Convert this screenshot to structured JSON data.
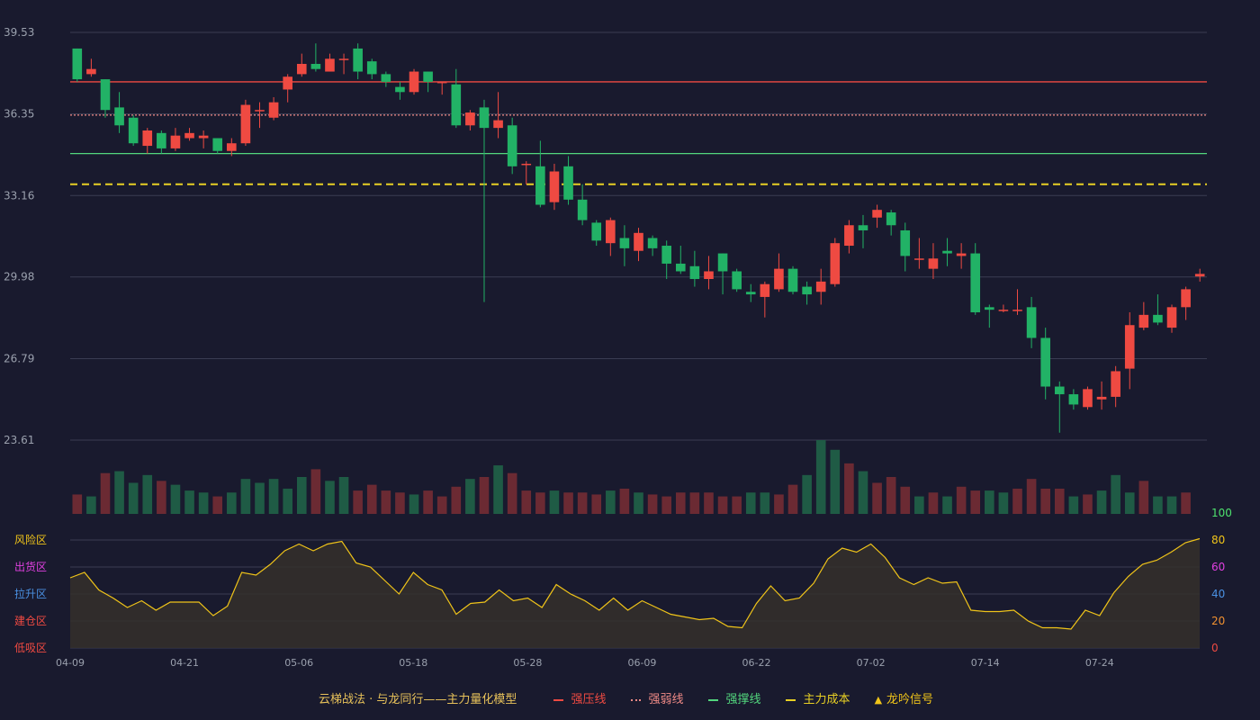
{
  "theme": {
    "background": "#191a2e",
    "grid": "#3a3c52",
    "up_color": "#ef4a42",
    "down_color": "#22b266",
    "vol_up_color": "#6b2a33",
    "vol_down_color": "#1f5b45",
    "osc_line": "#f0c419",
    "osc_fill": "#35302a"
  },
  "chart_data": [
    {
      "type": "candlestick",
      "y_ticks": [
        "39.53",
        "36.35",
        "33.16",
        "29.98",
        "26.79",
        "23.61"
      ],
      "ylim": [
        23.61,
        39.53
      ],
      "x_tick_labels": [
        {
          "index": 0,
          "label": "04-09"
        },
        {
          "index": 8,
          "label": "04-21"
        },
        {
          "index": 16,
          "label": "05-06"
        },
        {
          "index": 24,
          "label": "05-18"
        },
        {
          "index": 32,
          "label": "05-28"
        },
        {
          "index": 40,
          "label": "06-09"
        },
        {
          "index": 48,
          "label": "06-22"
        },
        {
          "index": 56,
          "label": "07-02"
        },
        {
          "index": 64,
          "label": "07-14"
        },
        {
          "index": 72,
          "label": "07-24"
        }
      ],
      "candles": [
        [
          38.9,
          37.7,
          38.9,
          37.6
        ],
        [
          37.9,
          38.1,
          38.5,
          37.8
        ],
        [
          37.7,
          36.5,
          37.7,
          36.2
        ],
        [
          36.6,
          35.9,
          37.2,
          35.6
        ],
        [
          36.2,
          35.2,
          36.3,
          35.1
        ],
        [
          35.1,
          35.7,
          35.8,
          34.8
        ],
        [
          35.6,
          35.0,
          35.7,
          34.8
        ],
        [
          35.0,
          35.5,
          35.8,
          34.9
        ],
        [
          35.4,
          35.6,
          35.8,
          35.3
        ],
        [
          35.4,
          35.5,
          35.7,
          35.0
        ],
        [
          35.4,
          34.9,
          35.4,
          34.8
        ],
        [
          34.9,
          35.2,
          35.4,
          34.7
        ],
        [
          35.2,
          36.7,
          36.9,
          35.1
        ],
        [
          36.5,
          36.5,
          36.8,
          35.8
        ],
        [
          36.2,
          36.8,
          37.0,
          36.1
        ],
        [
          37.3,
          37.8,
          37.9,
          36.8
        ],
        [
          37.9,
          38.3,
          38.7,
          37.8
        ],
        [
          38.3,
          38.1,
          39.1,
          38.0
        ],
        [
          38.0,
          38.5,
          38.7,
          38.0
        ],
        [
          38.5,
          38.5,
          38.7,
          37.9
        ],
        [
          38.9,
          38.0,
          39.1,
          37.7
        ],
        [
          38.4,
          37.9,
          38.5,
          37.7
        ],
        [
          37.9,
          37.6,
          38.0,
          37.4
        ],
        [
          37.4,
          37.2,
          37.6,
          36.9
        ],
        [
          37.2,
          38.0,
          38.1,
          37.1
        ],
        [
          38.0,
          37.6,
          38.0,
          37.2
        ],
        [
          37.6,
          37.6,
          37.6,
          37.1
        ],
        [
          37.5,
          35.9,
          38.1,
          35.8
        ],
        [
          35.9,
          36.4,
          36.5,
          35.7
        ],
        [
          36.6,
          35.8,
          36.9,
          29.0
        ],
        [
          35.8,
          36.1,
          37.2,
          35.4
        ],
        [
          35.9,
          34.3,
          36.2,
          34.0
        ],
        [
          34.4,
          34.4,
          34.5,
          33.6
        ],
        [
          34.3,
          32.8,
          35.3,
          32.7
        ],
        [
          32.9,
          34.1,
          34.4,
          32.6
        ],
        [
          34.3,
          33.0,
          34.7,
          32.8
        ],
        [
          33.0,
          32.2,
          33.6,
          32.0
        ],
        [
          32.1,
          31.4,
          32.2,
          31.2
        ],
        [
          31.3,
          32.2,
          32.3,
          30.8
        ],
        [
          31.5,
          31.1,
          32.0,
          30.4
        ],
        [
          31.0,
          31.7,
          31.9,
          30.6
        ],
        [
          31.5,
          31.1,
          31.6,
          30.8
        ],
        [
          31.2,
          30.5,
          31.4,
          29.9
        ],
        [
          30.5,
          30.2,
          31.2,
          30.1
        ],
        [
          30.4,
          29.9,
          31.0,
          29.6
        ],
        [
          29.9,
          30.2,
          30.8,
          29.5
        ],
        [
          30.9,
          30.2,
          30.9,
          29.3
        ],
        [
          30.2,
          29.5,
          30.3,
          29.4
        ],
        [
          29.4,
          29.3,
          29.7,
          29.0
        ],
        [
          29.2,
          29.7,
          29.8,
          28.4
        ],
        [
          29.5,
          30.3,
          30.9,
          29.4
        ],
        [
          30.3,
          29.4,
          30.4,
          29.3
        ],
        [
          29.6,
          29.3,
          29.8,
          28.9
        ],
        [
          29.4,
          29.8,
          30.3,
          28.9
        ],
        [
          29.7,
          31.3,
          31.5,
          29.6
        ],
        [
          31.2,
          32.0,
          32.2,
          30.9
        ],
        [
          32.0,
          31.8,
          32.4,
          31.1
        ],
        [
          32.3,
          32.6,
          32.8,
          31.9
        ],
        [
          32.5,
          32.0,
          32.6,
          31.6
        ],
        [
          31.8,
          30.8,
          32.1,
          30.2
        ],
        [
          30.7,
          30.7,
          31.5,
          30.3
        ],
        [
          30.3,
          30.7,
          31.3,
          29.9
        ],
        [
          31.0,
          30.9,
          31.5,
          30.4
        ],
        [
          30.8,
          30.9,
          31.3,
          30.3
        ],
        [
          30.9,
          28.6,
          31.3,
          28.5
        ],
        [
          28.8,
          28.7,
          28.9,
          28.0
        ],
        [
          28.7,
          28.7,
          28.9,
          28.6
        ],
        [
          28.7,
          28.7,
          29.5,
          28.5
        ],
        [
          28.8,
          27.6,
          29.2,
          27.2
        ],
        [
          27.6,
          25.7,
          28.0,
          25.2
        ],
        [
          25.7,
          25.4,
          25.9,
          23.9
        ],
        [
          25.4,
          25.0,
          25.6,
          24.8
        ],
        [
          24.9,
          25.6,
          25.7,
          24.8
        ],
        [
          25.2,
          25.3,
          25.9,
          24.8
        ],
        [
          25.3,
          26.3,
          26.5,
          24.9
        ],
        [
          26.4,
          28.1,
          28.6,
          25.6
        ],
        [
          28.0,
          28.5,
          29.0,
          27.9
        ],
        [
          28.5,
          28.2,
          29.3,
          28.1
        ],
        [
          28.0,
          28.8,
          28.9,
          27.8
        ],
        [
          28.8,
          29.5,
          29.6,
          28.3
        ],
        [
          30.0,
          30.1,
          30.3,
          29.8
        ]
      ],
      "volumes": [
        [
          1.0,
          1
        ],
        [
          0.9,
          0
        ],
        [
          2.1,
          1
        ],
        [
          2.2,
          0
        ],
        [
          1.6,
          0
        ],
        [
          2.0,
          0
        ],
        [
          1.7,
          1
        ],
        [
          1.5,
          0
        ],
        [
          1.2,
          0
        ],
        [
          1.1,
          0
        ],
        [
          0.9,
          1
        ],
        [
          1.1,
          0
        ],
        [
          1.8,
          0
        ],
        [
          1.6,
          0
        ],
        [
          1.8,
          0
        ],
        [
          1.3,
          0
        ],
        [
          1.9,
          0
        ],
        [
          2.3,
          1
        ],
        [
          1.7,
          0
        ],
        [
          1.9,
          0
        ],
        [
          1.2,
          1
        ],
        [
          1.5,
          1
        ],
        [
          1.2,
          1
        ],
        [
          1.1,
          1
        ],
        [
          1.0,
          0
        ],
        [
          1.2,
          1
        ],
        [
          0.9,
          1
        ],
        [
          1.4,
          1
        ],
        [
          1.8,
          0
        ],
        [
          1.9,
          1
        ],
        [
          2.5,
          0
        ],
        [
          2.1,
          1
        ],
        [
          1.2,
          1
        ],
        [
          1.1,
          1
        ],
        [
          1.2,
          0
        ],
        [
          1.1,
          1
        ],
        [
          1.1,
          1
        ],
        [
          1.0,
          1
        ],
        [
          1.2,
          0
        ],
        [
          1.3,
          1
        ],
        [
          1.1,
          0
        ],
        [
          1.0,
          1
        ],
        [
          0.9,
          1
        ],
        [
          1.1,
          1
        ],
        [
          1.1,
          1
        ],
        [
          1.1,
          1
        ],
        [
          0.9,
          1
        ],
        [
          0.9,
          1
        ],
        [
          1.1,
          0
        ],
        [
          1.1,
          0
        ],
        [
          1.0,
          1
        ],
        [
          1.5,
          1
        ],
        [
          2.0,
          0
        ],
        [
          3.8,
          0
        ],
        [
          3.3,
          0
        ],
        [
          2.6,
          1
        ],
        [
          2.2,
          0
        ],
        [
          1.6,
          1
        ],
        [
          1.9,
          1
        ],
        [
          1.4,
          1
        ],
        [
          0.9,
          0
        ],
        [
          1.1,
          1
        ],
        [
          0.9,
          0
        ],
        [
          1.4,
          1
        ],
        [
          1.2,
          1
        ],
        [
          1.2,
          0
        ],
        [
          1.1,
          0
        ],
        [
          1.3,
          1
        ],
        [
          1.8,
          1
        ],
        [
          1.3,
          1
        ],
        [
          1.3,
          1
        ],
        [
          0.9,
          0
        ],
        [
          1.0,
          1
        ],
        [
          1.2,
          0
        ],
        [
          2.0,
          0
        ],
        [
          1.1,
          0
        ],
        [
          1.7,
          1
        ],
        [
          0.9,
          0
        ],
        [
          0.9,
          0
        ],
        [
          1.1,
          1
        ]
      ],
      "lines": [
        {
          "name": "强压线",
          "value": 37.6,
          "color": "#ef4a42",
          "style": "solid"
        },
        {
          "name": "强弱线",
          "value": 36.3,
          "color": "#ef8a86",
          "style": "dotted"
        },
        {
          "name": "强撑线",
          "value": 34.8,
          "color": "#52d67d",
          "style": "solid"
        },
        {
          "name": "主力成本",
          "value": 33.6,
          "color": "#e8d024",
          "style": "dashed"
        }
      ]
    },
    {
      "type": "area",
      "ylim": [
        0,
        100
      ],
      "y_ticks": [
        "100",
        "80",
        "60",
        "40",
        "20",
        "0"
      ],
      "y_tick_colors": [
        "#4ee26e",
        "#f0c419",
        "#e040e0",
        "#4a90e2",
        "#f09030",
        "#ef4a42"
      ],
      "zones": [
        {
          "label": "风险区",
          "value": 80,
          "color": "#f0c419"
        },
        {
          "label": "出货区",
          "value": 60,
          "color": "#e040e0"
        },
        {
          "label": "拉升区",
          "value": 40,
          "color": "#4a90e2"
        },
        {
          "label": "建仓区",
          "value": 20,
          "color": "#ef4a42"
        },
        {
          "label": "低吸区",
          "value": 0,
          "color": "#ef4a42"
        }
      ],
      "values": [
        52,
        56,
        43,
        37,
        30,
        35,
        28,
        34,
        34,
        34,
        24,
        31,
        56,
        54,
        62,
        72,
        77,
        72,
        77,
        79,
        63,
        60,
        50,
        40,
        56,
        47,
        43,
        25,
        33,
        34,
        43,
        35,
        37,
        30,
        47,
        40,
        35,
        28,
        37,
        28,
        35,
        30,
        25,
        23,
        21,
        22,
        16,
        15,
        33,
        46,
        35,
        37,
        48,
        66,
        74,
        71,
        77,
        67,
        52,
        47,
        52,
        48,
        49,
        28,
        27,
        27,
        28,
        20,
        15,
        15,
        14,
        28,
        24,
        41,
        53,
        62,
        65,
        71,
        78,
        81
      ]
    }
  ],
  "legend": {
    "title": "云梯战法 · 与龙同行——主力量化模型",
    "items": [
      {
        "label": "强压线",
        "color": "#ef4a42",
        "marker": "line"
      },
      {
        "label": "强弱线",
        "color": "#ef8a86",
        "marker": "dotted"
      },
      {
        "label": "强撑线",
        "color": "#52d67d",
        "marker": "line"
      },
      {
        "label": "主力成本",
        "color": "#e8d024",
        "marker": "dashed"
      },
      {
        "label": "龙吟信号",
        "color": "#f0c419",
        "marker": "triangle"
      }
    ]
  }
}
